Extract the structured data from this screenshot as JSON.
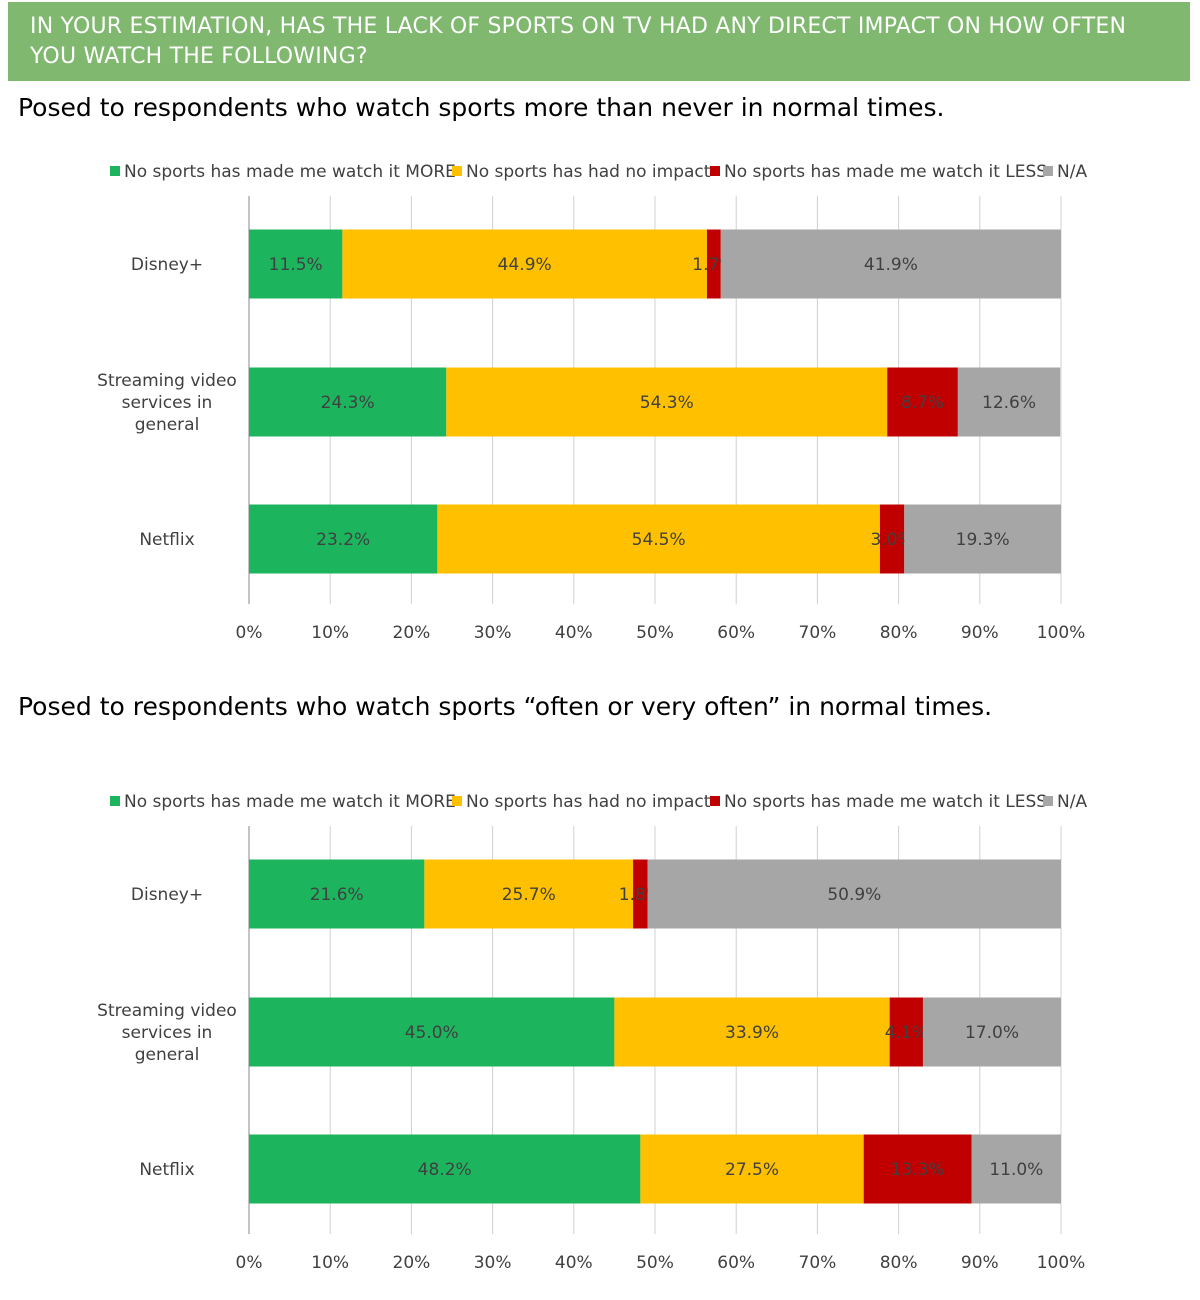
{
  "header": {
    "title_line1": "IN YOUR ESTIMATION, HAS THE LACK OF SPORTS ON TV HAD ANY DIRECT IMPACT ON HOW OFTEN",
    "title_line2": "YOU WATCH THE FOLLOWING?"
  },
  "subtitles": {
    "top": "Posed to respondents who watch sports more than never in normal times.",
    "bottom": "Posed to respondents who watch sports “often or very often” in normal times."
  },
  "colors": {
    "more": "#1db45e",
    "no_impact": "#ffc000",
    "less": "#c00000",
    "na": "#a6a6a6",
    "banner": "#7fb86e"
  },
  "chart_data": [
    {
      "type": "bar",
      "orientation": "horizontal",
      "stacked": true,
      "categories": [
        "Disney+",
        "Streaming video services in general",
        "Netflix"
      ],
      "series": [
        {
          "name": "No sports has made me watch it MORE",
          "values": [
            11.5,
            24.3,
            23.2
          ]
        },
        {
          "name": "No sports has had no impact",
          "values": [
            44.9,
            54.3,
            54.5
          ]
        },
        {
          "name": "No sports has made me watch it LESS",
          "values": [
            1.7,
            8.7,
            3.0
          ]
        },
        {
          "name": "N/A",
          "values": [
            41.9,
            12.6,
            19.3
          ]
        }
      ],
      "xlim": [
        0,
        100
      ],
      "xticks": [
        "0%",
        "10%",
        "20%",
        "30%",
        "40%",
        "50%",
        "60%",
        "70%",
        "80%",
        "90%",
        "100%"
      ],
      "legend": "top",
      "grid": "vertical"
    },
    {
      "type": "bar",
      "orientation": "horizontal",
      "stacked": true,
      "categories": [
        "Disney+",
        "Streaming video services in general",
        "Netflix"
      ],
      "series": [
        {
          "name": "No sports has made me watch it MORE",
          "values": [
            21.6,
            45.0,
            48.2
          ]
        },
        {
          "name": "No sports has had no impact",
          "values": [
            25.7,
            33.9,
            27.5
          ]
        },
        {
          "name": "No sports has made me watch it LESS",
          "values": [
            1.8,
            4.1,
            13.3
          ]
        },
        {
          "name": "N/A",
          "values": [
            50.9,
            17.0,
            11.0
          ]
        }
      ],
      "xlim": [
        0,
        100
      ],
      "xticks": [
        "0%",
        "10%",
        "20%",
        "30%",
        "40%",
        "50%",
        "60%",
        "70%",
        "80%",
        "90%",
        "100%"
      ],
      "legend": "top",
      "grid": "vertical"
    }
  ]
}
